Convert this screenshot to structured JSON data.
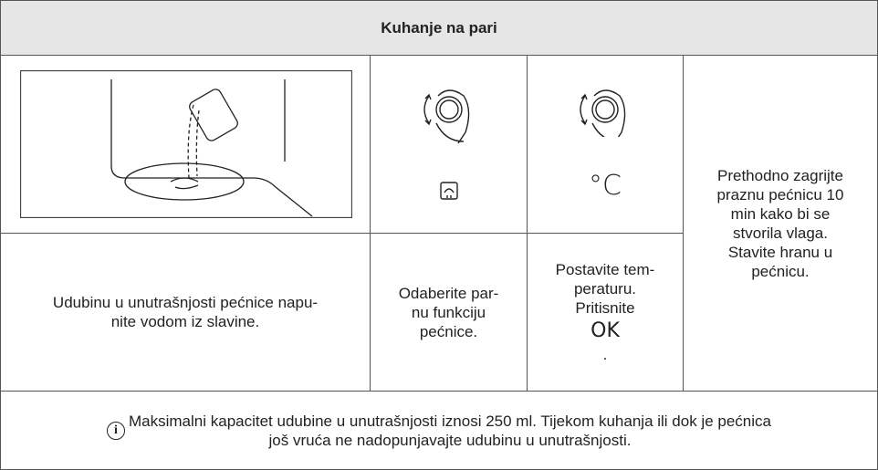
{
  "header": {
    "title": "Kuhanje na pari"
  },
  "steps": [
    {
      "text": "Udubinu u unutrašnjosti pećnice napu-\nnite vodom iz slavine."
    },
    {
      "text": "Odaberite par-\nnu funkciju\npećnice."
    },
    {
      "symbol": "°C",
      "text": "Postavite tem-\nperaturu.\nPritisnite",
      "button": "OK",
      "end": "."
    },
    {
      "text": "Prethodno zagrijte\npraznu pećnicu 10\nmin kako bi se\nstvorila vlaga.\nStavite hranu u\npećnicu."
    }
  ],
  "note": {
    "icon": "i",
    "text": "Maksimalni kapacitet udubine u unutrašnjosti iznosi 250 ml. Tijekom kuhanja ili dok je pećnica\njoš vruća ne nadopunjavajte udubinu u unutrašnjosti."
  }
}
